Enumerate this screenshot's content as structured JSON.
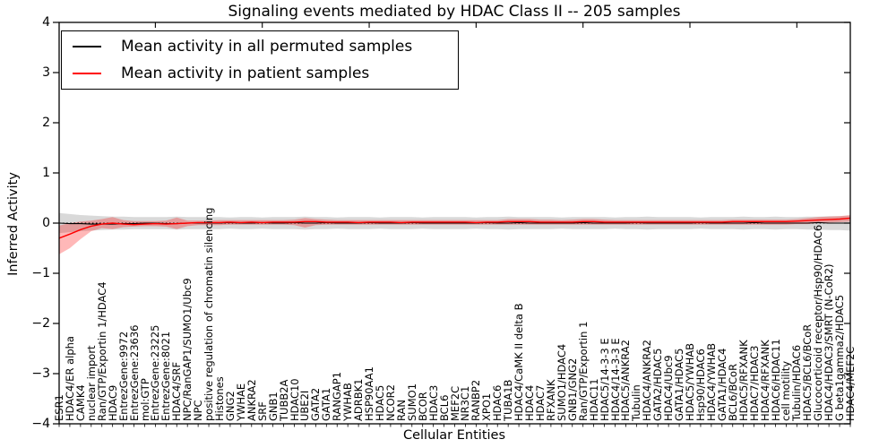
{
  "title": "Signaling events mediated by HDAC Class II -- 205 samples",
  "axes": {
    "xlabel": "Cellular Entities",
    "ylabel": "Inferred Activity"
  },
  "legend": {
    "items": [
      {
        "label": "Mean activity in all permuted samples",
        "color": "#000000"
      },
      {
        "label": "Mean activity in patient samples",
        "color": "#ff0000"
      }
    ]
  },
  "chart_data": {
    "type": "line",
    "title": "Signaling events mediated by HDAC Class II -- 205 samples",
    "xlabel": "Cellular Entities",
    "ylabel": "Inferred Activity",
    "ylim": [
      -4,
      4
    ],
    "yticks": [
      4,
      3,
      2,
      1,
      0,
      -1,
      -2,
      -3,
      -4
    ],
    "grid": false,
    "zero_line": true,
    "legend_position": "upper left",
    "categories": [
      "ESR1",
      "HDAC4/ER alpha",
      "CAMK4",
      "nuclear import",
      "Ran/GTP/Exportin 1/HDAC4",
      "HDAC9",
      "EntrezGene:9972",
      "EntrezGene:23636",
      "mol:GTP",
      "EntrezGene:23225",
      "EntrezGene:8021",
      "HDAC4/SRF",
      "NPC/RanGAP1/SUMO1/Ubc9",
      "NPC",
      "positive regulation of chromatin silencing",
      "Histones",
      "GNG2",
      "YWHAE",
      "ANKRA2",
      "SRF",
      "GNB1",
      "TUBB2A",
      "HDAC10",
      "UBE2I",
      "GATA2",
      "GATA1",
      "RANGAP1",
      "YWHAB",
      "ADRBK1",
      "HSP90AA1",
      "HDAC5",
      "NCOR2",
      "RAN",
      "SUMO1",
      "BCOR",
      "HDAC3",
      "BCL6",
      "MEF2C",
      "NR3C1",
      "RANBP2",
      "XPO1",
      "HDAC6",
      "TUBA1B",
      "HDAC4/CaMK II delta B",
      "HDAC4",
      "HDAC7",
      "RFXANK",
      "SUMO1/HDAC4",
      "GNB1/GNG2",
      "Ran/GTP/Exportin 1",
      "HDAC11",
      "HDAC5/14-3-3 E",
      "HDAC4/14-3-3 E",
      "HDAC5/ANKRA2",
      "Tubulin",
      "HDAC4/ANKRA2",
      "GATA2/HDAC5",
      "HDAC4/Ubc9",
      "GATA1/HDAC5",
      "HDAC5/YWHAB",
      "Hsp90/HDAC6",
      "HDAC4/YWHAB",
      "GATA1/HDAC4",
      "BCL6/BCoR",
      "HDAC5/RFXANK",
      "HDAC7/HDAC3",
      "HDAC4/RFXANK",
      "HDAC6/HDAC11",
      "cell motility",
      "Tubulin/HDAC6",
      "HDAC5/BCL6/BCoR",
      "Glucocorticoid receptor/Hsp90/HDAC6",
      "HDAC4/HDAC3/SMRT (N-CoR2)",
      "G beta1gamma2/HDAC5",
      "HDAC4/MEF2C"
    ],
    "series": [
      {
        "name": "Mean activity in all permuted samples",
        "color": "#000000",
        "width": 1.1,
        "values": [
          0.0,
          -0.01,
          -0.01,
          -0.02,
          -0.02,
          -0.02,
          -0.01,
          -0.01,
          0.0,
          0.0,
          -0.01,
          -0.01,
          0.0,
          0.0,
          0.0,
          0.0,
          0.01,
          0.0,
          0.0,
          0.01,
          0.0,
          0.0,
          0.01,
          0.0,
          0.0,
          0.01,
          0.0,
          0.0,
          0.0,
          0.01,
          0.0,
          0.0,
          0.0,
          0.01,
          0.0,
          0.0,
          0.0,
          0.0,
          0.0,
          0.0,
          0.01,
          0.0,
          0.0,
          0.01,
          0.0,
          0.0,
          0.0,
          0.0,
          0.0,
          0.01,
          0.0,
          0.0,
          0.0,
          0.0,
          0.01,
          0.0,
          0.0,
          0.0,
          0.0,
          0.0,
          0.01,
          0.0,
          0.0,
          0.0,
          0.0,
          0.01,
          0.0,
          0.0,
          0.0,
          0.0,
          0.0,
          0.01,
          0.0,
          0.0,
          0.0
        ]
      },
      {
        "name": "Mean activity in patient samples",
        "color": "#ff0000",
        "width": 1.4,
        "values": [
          -0.3,
          -0.22,
          -0.13,
          -0.06,
          -0.02,
          0.0,
          -0.02,
          -0.03,
          -0.02,
          -0.01,
          -0.02,
          -0.01,
          0.0,
          0.01,
          0.01,
          0.01,
          0.02,
          0.01,
          0.02,
          0.01,
          0.02,
          0.02,
          0.02,
          0.03,
          0.03,
          0.02,
          0.02,
          0.02,
          0.01,
          0.02,
          0.02,
          0.02,
          0.01,
          0.02,
          0.02,
          0.02,
          0.02,
          0.02,
          0.02,
          0.01,
          0.02,
          0.02,
          0.03,
          0.03,
          0.03,
          0.02,
          0.02,
          0.02,
          0.02,
          0.03,
          0.03,
          0.02,
          0.02,
          0.02,
          0.02,
          0.02,
          0.02,
          0.02,
          0.02,
          0.02,
          0.02,
          0.02,
          0.02,
          0.03,
          0.03,
          0.03,
          0.03,
          0.03,
          0.03,
          0.04,
          0.05,
          0.06,
          0.07,
          0.08,
          0.1
        ]
      }
    ],
    "bands": [
      {
        "name": "permuted-confidence-band",
        "color": "#aaaaaa",
        "opacity": 0.45,
        "lo": [
          -0.2,
          -0.18,
          -0.16,
          -0.15,
          -0.14,
          -0.13,
          -0.13,
          -0.12,
          -0.12,
          -0.12,
          -0.12,
          -0.13,
          -0.12,
          -0.12,
          -0.12,
          -0.12,
          -0.11,
          -0.12,
          -0.12,
          -0.11,
          -0.12,
          -0.12,
          -0.12,
          -0.13,
          -0.12,
          -0.12,
          -0.11,
          -0.12,
          -0.12,
          -0.12,
          -0.11,
          -0.12,
          -0.12,
          -0.12,
          -0.11,
          -0.12,
          -0.12,
          -0.12,
          -0.12,
          -0.11,
          -0.12,
          -0.12,
          -0.13,
          -0.12,
          -0.12,
          -0.12,
          -0.12,
          -0.11,
          -0.12,
          -0.12,
          -0.12,
          -0.12,
          -0.11,
          -0.12,
          -0.12,
          -0.13,
          -0.12,
          -0.12,
          -0.12,
          -0.12,
          -0.11,
          -0.12,
          -0.12,
          -0.12,
          -0.13,
          -0.12,
          -0.12,
          -0.13,
          -0.12,
          -0.12,
          -0.13,
          -0.13,
          -0.14,
          -0.14,
          -0.15
        ],
        "hi": [
          0.2,
          0.18,
          0.16,
          0.15,
          0.14,
          0.13,
          0.13,
          0.12,
          0.12,
          0.12,
          0.12,
          0.13,
          0.12,
          0.12,
          0.12,
          0.12,
          0.11,
          0.12,
          0.12,
          0.11,
          0.12,
          0.12,
          0.12,
          0.13,
          0.12,
          0.12,
          0.11,
          0.12,
          0.12,
          0.12,
          0.11,
          0.12,
          0.12,
          0.12,
          0.11,
          0.12,
          0.12,
          0.12,
          0.12,
          0.11,
          0.12,
          0.12,
          0.13,
          0.12,
          0.12,
          0.12,
          0.12,
          0.11,
          0.12,
          0.12,
          0.12,
          0.12,
          0.11,
          0.12,
          0.12,
          0.13,
          0.12,
          0.12,
          0.12,
          0.12,
          0.11,
          0.12,
          0.12,
          0.12,
          0.13,
          0.12,
          0.12,
          0.13,
          0.12,
          0.12,
          0.13,
          0.13,
          0.14,
          0.14,
          0.15
        ]
      },
      {
        "name": "patient-confidence-band",
        "color": "#ff0000",
        "opacity": 0.28,
        "lo": [
          -0.62,
          -0.5,
          -0.32,
          -0.16,
          -0.1,
          -0.12,
          -0.08,
          -0.07,
          -0.06,
          -0.06,
          -0.07,
          -0.12,
          -0.06,
          -0.04,
          -0.04,
          -0.04,
          -0.03,
          -0.03,
          -0.03,
          -0.03,
          -0.03,
          -0.03,
          -0.04,
          -0.09,
          -0.04,
          -0.03,
          -0.03,
          -0.03,
          -0.03,
          -0.03,
          -0.03,
          -0.03,
          -0.03,
          -0.03,
          -0.03,
          -0.03,
          -0.03,
          -0.03,
          -0.03,
          -0.03,
          -0.03,
          -0.03,
          -0.03,
          -0.03,
          -0.03,
          -0.03,
          -0.03,
          -0.03,
          -0.03,
          -0.03,
          -0.03,
          -0.03,
          -0.03,
          -0.03,
          -0.03,
          -0.03,
          -0.03,
          -0.03,
          -0.03,
          -0.03,
          -0.03,
          -0.03,
          -0.03,
          -0.03,
          -0.03,
          -0.03,
          -0.03,
          -0.03,
          -0.03,
          -0.02,
          -0.02,
          0.0,
          0.01,
          0.02,
          0.03
        ],
        "hi": [
          -0.05,
          0.0,
          0.03,
          0.05,
          0.08,
          0.12,
          0.06,
          0.04,
          0.04,
          0.04,
          0.05,
          0.11,
          0.05,
          0.05,
          0.05,
          0.06,
          0.06,
          0.06,
          0.06,
          0.06,
          0.06,
          0.06,
          0.07,
          0.1,
          0.08,
          0.07,
          0.06,
          0.06,
          0.06,
          0.06,
          0.06,
          0.06,
          0.06,
          0.06,
          0.06,
          0.06,
          0.06,
          0.06,
          0.06,
          0.06,
          0.06,
          0.06,
          0.08,
          0.08,
          0.08,
          0.07,
          0.07,
          0.06,
          0.07,
          0.08,
          0.08,
          0.07,
          0.06,
          0.06,
          0.06,
          0.06,
          0.06,
          0.06,
          0.06,
          0.06,
          0.06,
          0.06,
          0.06,
          0.07,
          0.07,
          0.07,
          0.07,
          0.07,
          0.07,
          0.08,
          0.1,
          0.12,
          0.13,
          0.14,
          0.16
        ]
      }
    ]
  }
}
